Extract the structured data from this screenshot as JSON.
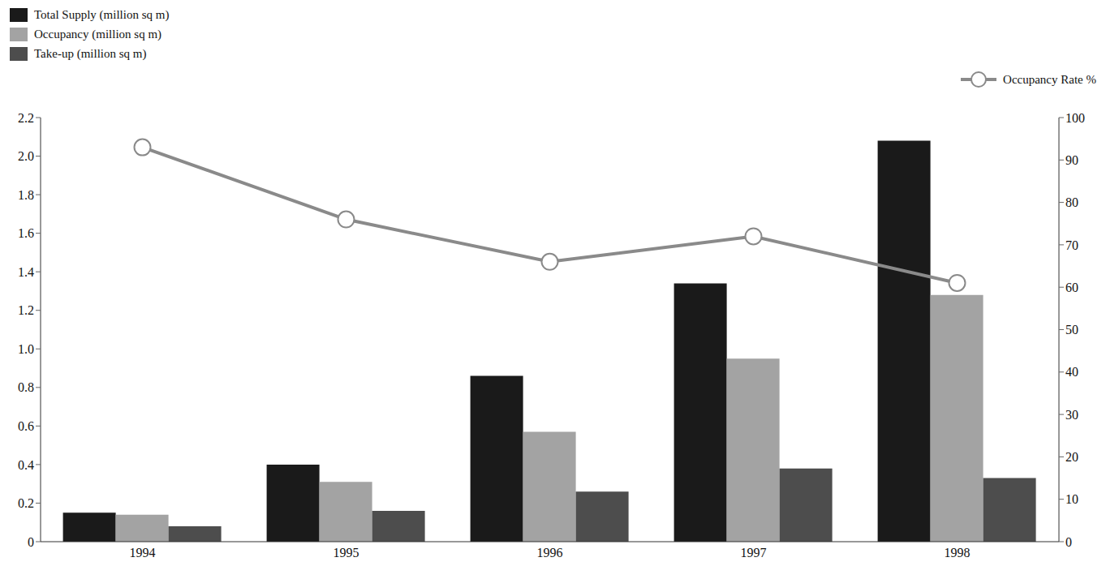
{
  "chart_data": {
    "type": "bar",
    "categories": [
      "1994",
      "1995",
      "1996",
      "1997",
      "1998"
    ],
    "series": [
      {
        "name": "Total Supply (million sq m)",
        "type": "bar",
        "color": "#1a1a1a",
        "values": [
          0.15,
          0.4,
          0.86,
          1.34,
          2.08
        ]
      },
      {
        "name": "Occupancy (million sq m)",
        "type": "bar",
        "color": "#a3a3a3",
        "values": [
          0.14,
          0.31,
          0.57,
          0.95,
          1.28
        ]
      },
      {
        "name": "Take-up (million sq m)",
        "type": "bar",
        "color": "#4d4d4d",
        "values": [
          0.08,
          0.16,
          0.26,
          0.38,
          0.33
        ]
      },
      {
        "name": "Occupancy Rate %",
        "type": "line",
        "axis": "y2",
        "color": "#8a8a8a",
        "marker": "circle",
        "values": [
          93,
          76,
          66,
          72,
          61
        ]
      }
    ],
    "ylim": [
      0,
      2.2
    ],
    "yticks": [
      0,
      0.2,
      0.4,
      0.6,
      0.8,
      {
        "value": 1,
        "label": "1.0"
      },
      1.2,
      1.4,
      1.6,
      1.8,
      {
        "value": 2,
        "label": "2.0"
      },
      2.2
    ],
    "y2lim": [
      0,
      100
    ],
    "y2ticks": [
      0,
      10,
      20,
      30,
      40,
      50,
      60,
      70,
      80,
      90,
      100
    ],
    "grid": false,
    "legend": "top"
  }
}
